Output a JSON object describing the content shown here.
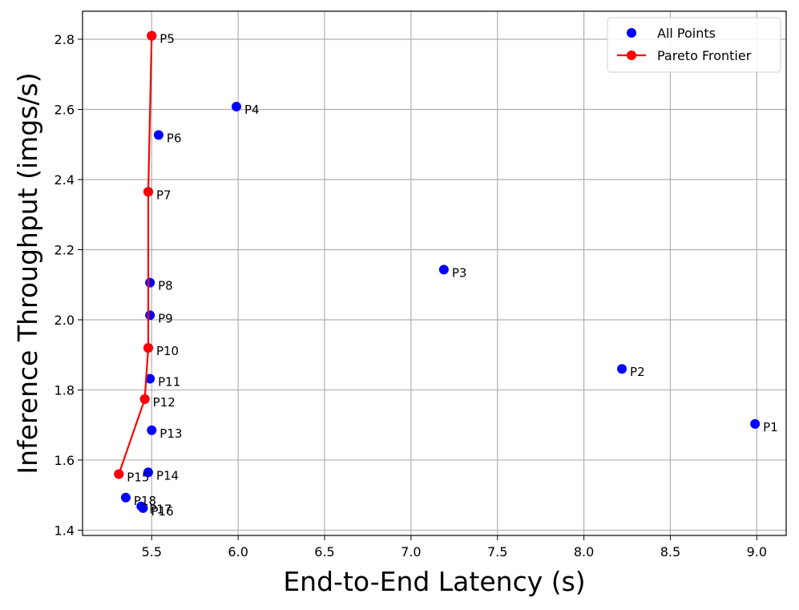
{
  "chart_data": {
    "type": "scatter",
    "title": "",
    "xlabel": "End-to-End Latency (s)",
    "ylabel": "Inference Throughput (imgs/s)",
    "xlim": [
      5.1,
      9.17
    ],
    "ylim": [
      1.385,
      2.88
    ],
    "xticks": [
      "5.5",
      "6.0",
      "6.5",
      "7.0",
      "7.5",
      "8.0",
      "8.5",
      "9.0"
    ],
    "yticks": [
      "1.4",
      "1.6",
      "1.8",
      "2.0",
      "2.2",
      "2.4",
      "2.6",
      "2.8"
    ],
    "grid": true,
    "legend_position": "top-right",
    "legend": [
      {
        "name": "All Points",
        "marker": "dot",
        "color": "#0000ff"
      },
      {
        "name": "Pareto Frontier",
        "marker": "line-dot",
        "color": "#ff0000"
      }
    ],
    "series": [
      {
        "name": "All Points",
        "color": "#0000ff",
        "points": [
          {
            "label": "P1",
            "x": 8.99,
            "y": 1.703
          },
          {
            "label": "P2",
            "x": 8.22,
            "y": 1.86
          },
          {
            "label": "P3",
            "x": 7.19,
            "y": 2.143
          },
          {
            "label": "P4",
            "x": 5.99,
            "y": 2.608
          },
          {
            "label": "P5",
            "x": 5.5,
            "y": 2.81
          },
          {
            "label": "P6",
            "x": 5.54,
            "y": 2.527
          },
          {
            "label": "P7",
            "x": 5.48,
            "y": 2.365
          },
          {
            "label": "P8",
            "x": 5.49,
            "y": 2.106
          },
          {
            "label": "P9",
            "x": 5.49,
            "y": 2.013
          },
          {
            "label": "P10",
            "x": 5.48,
            "y": 1.92
          },
          {
            "label": "P11",
            "x": 5.49,
            "y": 1.832
          },
          {
            "label": "P12",
            "x": 5.46,
            "y": 1.774
          },
          {
            "label": "P13",
            "x": 5.5,
            "y": 1.685
          },
          {
            "label": "P14",
            "x": 5.48,
            "y": 1.565
          },
          {
            "label": "P15",
            "x": 5.31,
            "y": 1.56
          },
          {
            "label": "P16",
            "x": 5.45,
            "y": 1.463
          },
          {
            "label": "P17",
            "x": 5.44,
            "y": 1.468
          },
          {
            "label": "P18",
            "x": 5.35,
            "y": 1.493
          }
        ]
      },
      {
        "name": "Pareto Frontier",
        "color": "#ff0000",
        "points": [
          {
            "label": "P5",
            "x": 5.5,
            "y": 2.81
          },
          {
            "label": "P7",
            "x": 5.48,
            "y": 2.365
          },
          {
            "label": "P10",
            "x": 5.48,
            "y": 1.92
          },
          {
            "label": "P12",
            "x": 5.46,
            "y": 1.774
          },
          {
            "label": "P15",
            "x": 5.31,
            "y": 1.56
          }
        ]
      }
    ]
  }
}
